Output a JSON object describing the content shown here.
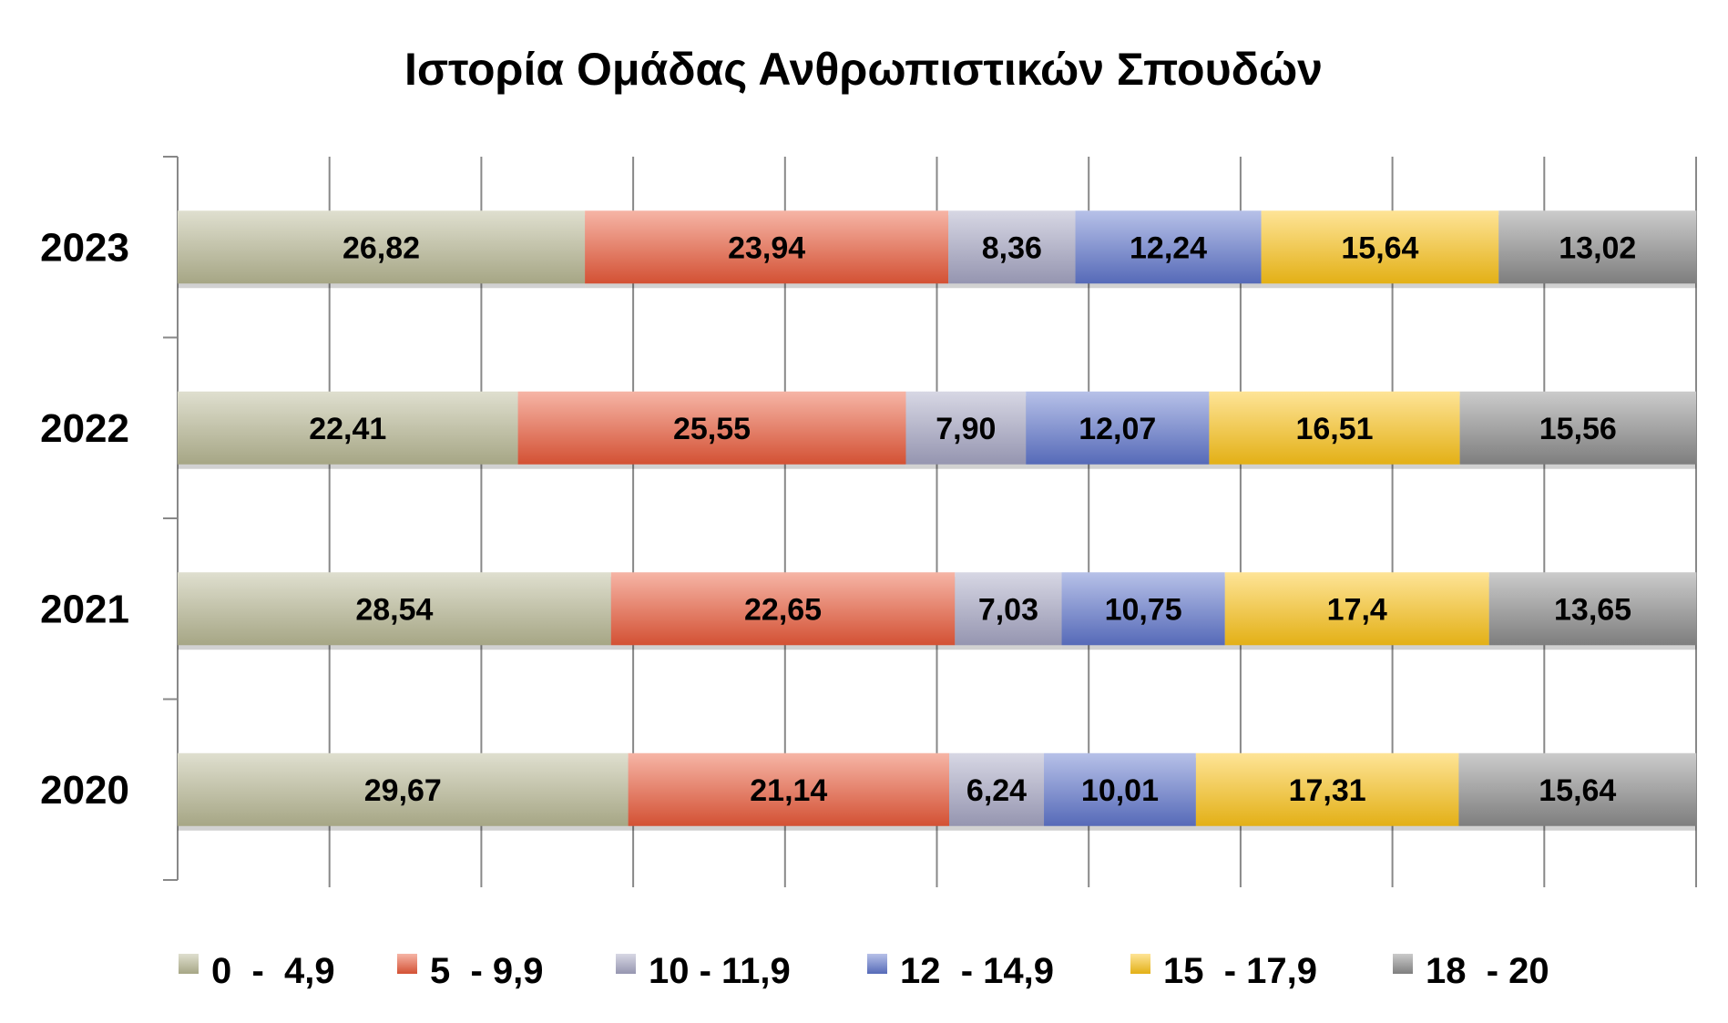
{
  "chart_data": {
    "type": "bar",
    "orientation": "horizontal",
    "stacked": "percent",
    "title": "Ιστορία Ομάδας Ανθρωπιστικών Σπουδών",
    "categories": [
      "2023",
      "2022",
      "2021",
      "2020"
    ],
    "xlim": [
      0,
      100
    ],
    "grid": true,
    "legend_position": "bottom",
    "series": [
      {
        "name": "0  -  4,9",
        "values": [
          26.82,
          22.41,
          28.54,
          29.67
        ],
        "labels": [
          "26,82",
          "22,41",
          "28,54",
          "29,67"
        ],
        "color": "#b8b894"
      },
      {
        "name": "5  - 9,9",
        "values": [
          23.94,
          25.55,
          22.65,
          21.14
        ],
        "labels": [
          "23,94",
          "25,55",
          "22,65",
          "21,14"
        ],
        "color": "#ea5a3a"
      },
      {
        "name": "10 - 11,9",
        "values": [
          8.36,
          7.9,
          7.03,
          6.24
        ],
        "labels": [
          "8,36",
          "7,90",
          "7,03",
          "6,24"
        ],
        "color": "#a5a5c4"
      },
      {
        "name": "12  - 14,9",
        "values": [
          12.24,
          12.07,
          10.75,
          10.01
        ],
        "labels": [
          "12,24",
          "12,07",
          "10,75",
          "10,01"
        ],
        "color": "#6076cc"
      },
      {
        "name": "15  - 17,9",
        "values": [
          15.64,
          16.51,
          17.4,
          17.31
        ],
        "labels": [
          "15,64",
          "16,51",
          "17,4",
          "17,31"
        ],
        "color": "#fcc418"
      },
      {
        "name": "18  - 20",
        "values": [
          13.02,
          15.56,
          13.65,
          15.64
        ],
        "labels": [
          "13,02",
          "15,56",
          "13,65",
          "15,64"
        ],
        "color": "#8c8c8c"
      }
    ]
  }
}
